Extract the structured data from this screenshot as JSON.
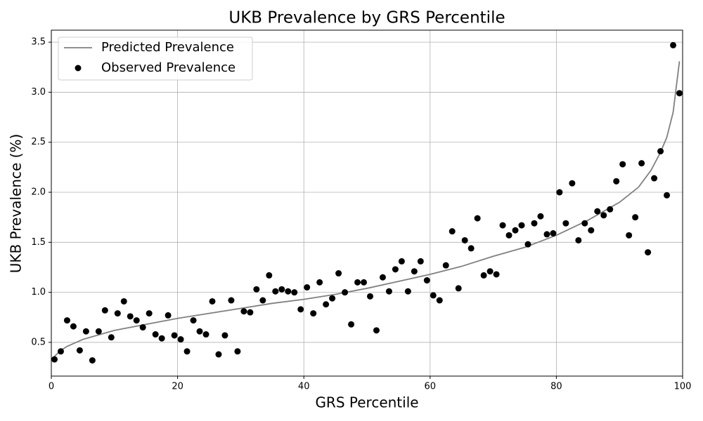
{
  "chart_data": {
    "type": "scatter",
    "title": "UKB Prevalence by GRS Percentile",
    "x_label": "GRS Percentile",
    "y_label": "UKB Prevalence (%)",
    "xlim": [
      0,
      100
    ],
    "xticks": [
      0,
      20,
      40,
      60,
      80,
      100
    ],
    "ylim": [
      0.163,
      3.62
    ],
    "yticks": [
      0.5,
      {
        "value": 1,
        "label": "1.0"
      },
      1.5,
      {
        "value": 2,
        "label": "2.0"
      },
      2.5,
      {
        "value": 3,
        "label": "3.0"
      },
      3.5
    ],
    "grid": true,
    "legend": "upper left",
    "series": [
      {
        "name": "Predicted Prevalence",
        "type": "line",
        "color": "#808080",
        "x": [
          0.5,
          1.5,
          2.5,
          5,
          10,
          15,
          20,
          25,
          30,
          35,
          40,
          45,
          50,
          55,
          60,
          65,
          70,
          75,
          80,
          85,
          90,
          93,
          95,
          96.5,
          97.5,
          98.5,
          99.5
        ],
        "values": [
          0.36,
          0.42,
          0.46,
          0.53,
          0.62,
          0.68,
          0.74,
          0.79,
          0.84,
          0.89,
          0.93,
          0.98,
          1.04,
          1.11,
          1.18,
          1.26,
          1.36,
          1.45,
          1.57,
          1.72,
          1.9,
          2.05,
          2.22,
          2.4,
          2.55,
          2.8,
          3.31
        ]
      },
      {
        "name": "Observed Prevalence",
        "type": "scatter",
        "color": "#000000",
        "x": [
          0.5,
          1.5,
          2.5,
          3.5,
          4.5,
          5.5,
          6.5,
          7.5,
          8.5,
          9.5,
          10.5,
          11.5,
          12.5,
          13.5,
          14.5,
          15.5,
          16.5,
          17.5,
          18.5,
          19.5,
          20.5,
          21.5,
          22.5,
          23.5,
          24.5,
          25.5,
          26.5,
          27.5,
          28.5,
          29.5,
          30.5,
          31.5,
          32.5,
          33.5,
          34.5,
          35.5,
          36.5,
          37.5,
          38.5,
          39.5,
          40.5,
          41.5,
          42.5,
          43.5,
          44.5,
          45.5,
          46.5,
          47.5,
          48.5,
          49.5,
          50.5,
          51.5,
          52.5,
          53.5,
          54.5,
          55.5,
          56.5,
          57.5,
          58.5,
          59.5,
          60.5,
          61.5,
          62.5,
          63.5,
          64.5,
          65.5,
          66.5,
          67.5,
          68.5,
          69.5,
          70.5,
          71.5,
          72.5,
          73.5,
          74.5,
          75.5,
          76.5,
          77.5,
          78.5,
          79.5,
          80.5,
          81.5,
          82.5,
          83.5,
          84.5,
          85.5,
          86.5,
          87.5,
          88.5,
          89.5,
          90.5,
          91.5,
          92.5,
          93.5,
          94.5,
          95.5,
          96.5,
          97.5,
          98.5,
          99.5
        ],
        "values": [
          0.33,
          0.41,
          0.72,
          0.66,
          0.42,
          0.61,
          0.32,
          0.61,
          0.82,
          0.55,
          0.79,
          0.91,
          0.76,
          0.72,
          0.65,
          0.79,
          0.58,
          0.54,
          0.77,
          0.57,
          0.53,
          0.41,
          0.72,
          0.61,
          0.58,
          0.91,
          0.38,
          0.57,
          0.92,
          0.41,
          0.81,
          0.8,
          1.03,
          0.92,
          1.17,
          1.01,
          1.03,
          1.01,
          1.0,
          0.83,
          1.05,
          0.79,
          1.1,
          0.88,
          0.94,
          1.19,
          1.0,
          0.68,
          1.1,
          1.1,
          0.96,
          0.62,
          1.15,
          1.01,
          1.23,
          1.31,
          1.01,
          1.21,
          1.31,
          1.12,
          0.97,
          0.92,
          1.27,
          1.61,
          1.04,
          1.52,
          1.44,
          1.74,
          1.17,
          1.21,
          1.18,
          1.67,
          1.57,
          1.62,
          1.67,
          1.48,
          1.69,
          1.76,
          1.58,
          1.59,
          2.0,
          1.69,
          2.09,
          1.52,
          1.69,
          1.62,
          1.81,
          1.77,
          1.83,
          2.11,
          2.28,
          1.57,
          1.75,
          2.29,
          1.4,
          2.14,
          2.41,
          1.97,
          3.47,
          2.99
        ]
      }
    ]
  }
}
